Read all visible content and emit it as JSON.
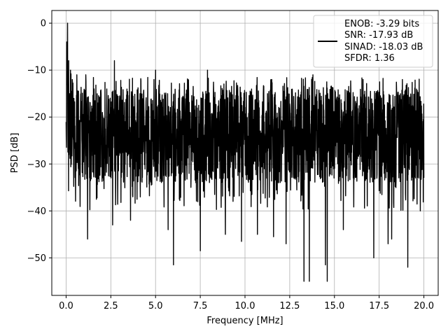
{
  "chart_data": {
    "type": "line",
    "title": "",
    "xlabel": "Frequency [MHz]",
    "ylabel": "PSD [dB]",
    "xlim": [
      -0.8,
      20.8
    ],
    "ylim": [
      -58,
      2.7
    ],
    "xticks": [
      0.0,
      2.5,
      5.0,
      7.5,
      10.0,
      12.5,
      15.0,
      17.5,
      20.0
    ],
    "xtick_labels": [
      "0.0",
      "2.5",
      "5.0",
      "7.5",
      "10.0",
      "12.5",
      "15.0",
      "17.5",
      "20.0"
    ],
    "yticks": [
      0,
      -10,
      -20,
      -30,
      -40,
      -50
    ],
    "ytick_labels": [
      "0",
      "−10",
      "−20",
      "−30",
      "−40",
      "−50"
    ],
    "grid": true,
    "legend_position": "top-right",
    "line_color": "#000000",
    "legend": {
      "lines": [
        "ENOB: -3.29 bits",
        "SNR: -17.93 dB",
        "SINAD: -18.03 dB",
        "SFDR: 1.36"
      ]
    },
    "series": [
      {
        "x_start": 0.0,
        "x_end": 20.0,
        "band_upper": -14,
        "band_lower": -34,
        "median": -24,
        "peaks": [
          [
            0.08,
            0.0
          ],
          [
            0.04,
            -4
          ],
          [
            0.15,
            -8
          ],
          [
            0.25,
            -10
          ],
          [
            0.35,
            -12
          ],
          [
            0.6,
            -11
          ],
          [
            1.1,
            -11
          ],
          [
            2.7,
            -8
          ],
          [
            5.0,
            -10
          ],
          [
            7.9,
            -10
          ],
          [
            11.5,
            -12
          ],
          [
            13.8,
            -11
          ],
          [
            16.6,
            -12
          ],
          [
            18.8,
            -12
          ]
        ],
        "dips": [
          [
            1.2,
            -46
          ],
          [
            2.6,
            -43
          ],
          [
            3.6,
            -42
          ],
          [
            5.7,
            -44
          ],
          [
            6.0,
            -51.5
          ],
          [
            7.5,
            -48.5
          ],
          [
            8.9,
            -45
          ],
          [
            9.8,
            -46.5
          ],
          [
            10.7,
            -45
          ],
          [
            11.6,
            -45.5
          ],
          [
            12.3,
            -47
          ],
          [
            13.3,
            -55
          ],
          [
            13.6,
            -55
          ],
          [
            14.6,
            -55
          ],
          [
            14.5,
            -51.5
          ],
          [
            15.5,
            -44
          ],
          [
            17.2,
            -50
          ],
          [
            18.0,
            -47
          ],
          [
            18.2,
            -46
          ],
          [
            19.1,
            -52
          ],
          [
            19.8,
            -40
          ]
        ]
      }
    ]
  }
}
